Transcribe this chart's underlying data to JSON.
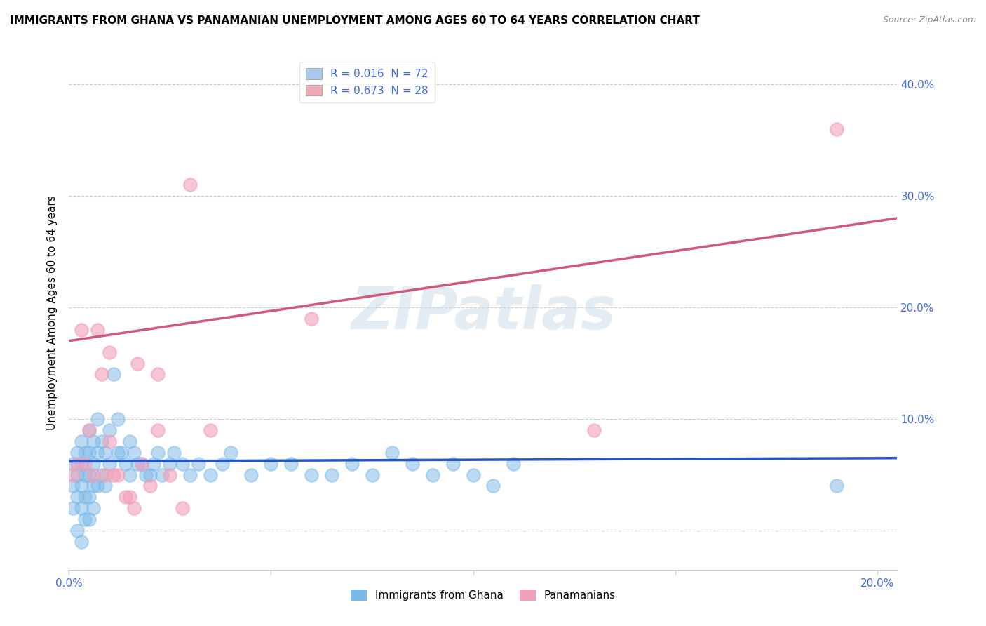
{
  "title": "IMMIGRANTS FROM GHANA VS PANAMANIAN UNEMPLOYMENT AMONG AGES 60 TO 64 YEARS CORRELATION CHART",
  "source": "Source: ZipAtlas.com",
  "ylabel": "Unemployment Among Ages 60 to 64 years",
  "watermark": "ZIPatlas",
  "xlim": [
    0.0,
    0.205
  ],
  "ylim": [
    -0.035,
    0.425
  ],
  "yticks": [
    0.0,
    0.1,
    0.2,
    0.3,
    0.4
  ],
  "ytick_labels": [
    "",
    "10.0%",
    "20.0%",
    "30.0%",
    "40.0%"
  ],
  "xticks": [
    0.0,
    0.05,
    0.1,
    0.15,
    0.2
  ],
  "xtick_labels": [
    "0.0%",
    "",
    "",
    "",
    "20.0%"
  ],
  "legend_label1": "R = 0.016  N = 72",
  "legend_label2": "R = 0.673  N = 28",
  "legend_color1": "#a8c8f0",
  "legend_color2": "#f0a8b8",
  "blue_scatter_x": [
    0.001,
    0.001,
    0.001,
    0.002,
    0.002,
    0.002,
    0.002,
    0.003,
    0.003,
    0.003,
    0.003,
    0.003,
    0.004,
    0.004,
    0.004,
    0.004,
    0.005,
    0.005,
    0.005,
    0.005,
    0.005,
    0.006,
    0.006,
    0.006,
    0.006,
    0.007,
    0.007,
    0.007,
    0.008,
    0.008,
    0.009,
    0.009,
    0.01,
    0.01,
    0.011,
    0.012,
    0.012,
    0.013,
    0.014,
    0.015,
    0.015,
    0.016,
    0.017,
    0.018,
    0.019,
    0.02,
    0.021,
    0.022,
    0.023,
    0.025,
    0.026,
    0.028,
    0.03,
    0.032,
    0.035,
    0.038,
    0.04,
    0.045,
    0.05,
    0.055,
    0.06,
    0.065,
    0.07,
    0.075,
    0.08,
    0.085,
    0.09,
    0.095,
    0.1,
    0.105,
    0.11,
    0.19
  ],
  "blue_scatter_y": [
    0.06,
    0.04,
    0.02,
    0.07,
    0.05,
    0.03,
    0.0,
    0.08,
    0.06,
    0.04,
    0.02,
    -0.01,
    0.07,
    0.05,
    0.03,
    0.01,
    0.09,
    0.07,
    0.05,
    0.03,
    0.01,
    0.08,
    0.06,
    0.04,
    0.02,
    0.1,
    0.07,
    0.04,
    0.08,
    0.05,
    0.07,
    0.04,
    0.09,
    0.06,
    0.14,
    0.1,
    0.07,
    0.07,
    0.06,
    0.08,
    0.05,
    0.07,
    0.06,
    0.06,
    0.05,
    0.05,
    0.06,
    0.07,
    0.05,
    0.06,
    0.07,
    0.06,
    0.05,
    0.06,
    0.05,
    0.06,
    0.07,
    0.05,
    0.06,
    0.06,
    0.05,
    0.05,
    0.06,
    0.05,
    0.07,
    0.06,
    0.05,
    0.06,
    0.05,
    0.04,
    0.06,
    0.04
  ],
  "pink_scatter_x": [
    0.001,
    0.002,
    0.003,
    0.004,
    0.005,
    0.006,
    0.007,
    0.008,
    0.009,
    0.01,
    0.011,
    0.012,
    0.014,
    0.015,
    0.016,
    0.017,
    0.018,
    0.02,
    0.022,
    0.025,
    0.028,
    0.03,
    0.035,
    0.06,
    0.13,
    0.19,
    0.01,
    0.022
  ],
  "pink_scatter_y": [
    0.05,
    0.06,
    0.18,
    0.06,
    0.09,
    0.05,
    0.18,
    0.14,
    0.05,
    0.16,
    0.05,
    0.05,
    0.03,
    0.03,
    0.02,
    0.15,
    0.06,
    0.04,
    0.09,
    0.05,
    0.02,
    0.31,
    0.09,
    0.19,
    0.09,
    0.36,
    0.08,
    0.14
  ],
  "blue_line_x": [
    0.0,
    0.205
  ],
  "blue_line_y": [
    0.062,
    0.065
  ],
  "pink_line_x": [
    0.0,
    0.205
  ],
  "pink_line_y": [
    0.17,
    0.28
  ],
  "blue_color": "#7ab8e8",
  "pink_color": "#f0a0b8",
  "blue_line_color": "#2255cc",
  "pink_line_color": "#d05878",
  "grid_color": "#cccccc",
  "background_color": "#ffffff",
  "title_fontsize": 11,
  "axis_label_fontsize": 11,
  "tick_fontsize": 11,
  "legend_fontsize": 11
}
